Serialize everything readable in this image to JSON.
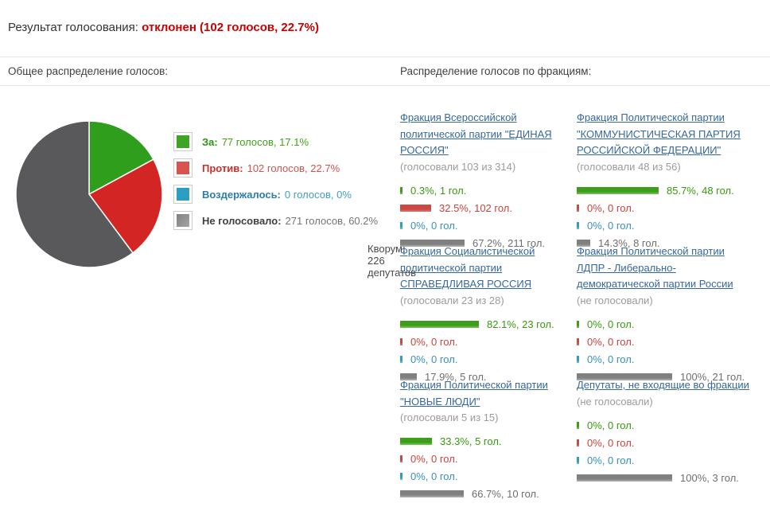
{
  "header": {
    "label": "Результат голосования:",
    "result": "отклонен (102 голосов, 22.7%)"
  },
  "left_section": {
    "title": "Общее распределение голосов:",
    "quorum": "Кворум: 226 депутатов"
  },
  "right_section": {
    "title": "Распределение голосов по фракциям:"
  },
  "colors": {
    "for": "#3ea426",
    "against": "#d9534f",
    "abstain": "#2e9dc4",
    "not_voting": "#808080",
    "result_red": "#cc0000",
    "link_blue": "#35689c"
  },
  "chart_data": {
    "type": "pie",
    "title": "Общее распределение голосов",
    "slices": [
      {
        "label": "За",
        "votes": 77,
        "pct": 17.1,
        "color": "#2f9e1d"
      },
      {
        "label": "Против",
        "votes": 102,
        "pct": 22.7,
        "color": "#d32624"
      },
      {
        "label": "Воздержалось",
        "votes": 0,
        "pct": 0,
        "color": "#2f9ec5"
      },
      {
        "label": "Не голосовало",
        "votes": 271,
        "pct": 60.2,
        "color": "#59595b"
      }
    ],
    "quorum": 226
  },
  "legend": [
    {
      "label": "За:",
      "value": "77 голосов, 17.1%"
    },
    {
      "label": "Против:",
      "value": "102 голосов, 22.7%"
    },
    {
      "label": "Воздержалось:",
      "value": "0 голосов, 0%"
    },
    {
      "label": "Не голосовало:",
      "value": "271 голосов, 60.2%"
    }
  ],
  "factions": [
    {
      "name": "Фракция Всероссийской политической партии \"ЕДИНАЯ РОССИЯ\"",
      "sub": "(голосовали 103 из 314)",
      "bars": [
        {
          "pct": 0.3,
          "votes": 1,
          "text": "0.3%, 1 гол."
        },
        {
          "pct": 32.5,
          "votes": 102,
          "text": "32.5%, 102 гол."
        },
        {
          "pct": 0,
          "votes": 0,
          "text": "0%, 0 гол."
        },
        {
          "pct": 67.2,
          "votes": 211,
          "text": "67.2%, 211 гол."
        }
      ]
    },
    {
      "name": "Фракция Политической партии \"КОММУНИСТИЧЕСКАЯ ПАРТИЯ РОССИЙСКОЙ ФЕДЕРАЦИИ\"",
      "sub": "(голосовали 48 из 56)",
      "bars": [
        {
          "pct": 85.7,
          "votes": 48,
          "text": "85.7%, 48 гол."
        },
        {
          "pct": 0,
          "votes": 0,
          "text": "0%, 0 гол."
        },
        {
          "pct": 0,
          "votes": 0,
          "text": "0%, 0 гол."
        },
        {
          "pct": 14.3,
          "votes": 8,
          "text": "14.3%, 8 гол."
        }
      ]
    },
    {
      "name": "Фракция Социалистической политической партии СПРАВЕДЛИВАЯ РОССИЯ",
      "sub": "(голосовали 23 из 28)",
      "bars": [
        {
          "pct": 82.1,
          "votes": 23,
          "text": "82.1%, 23 гол."
        },
        {
          "pct": 0,
          "votes": 0,
          "text": "0%, 0 гол."
        },
        {
          "pct": 0,
          "votes": 0,
          "text": "0%, 0 гол."
        },
        {
          "pct": 17.9,
          "votes": 5,
          "text": "17.9%, 5 гол."
        }
      ]
    },
    {
      "name": "Фракция Политической партии ЛДПР - Либерально-демократической партии России",
      "sub": "(не голосовали)",
      "bars": [
        {
          "pct": 0,
          "votes": 0,
          "text": "0%, 0 гол."
        },
        {
          "pct": 0,
          "votes": 0,
          "text": "0%, 0 гол."
        },
        {
          "pct": 0,
          "votes": 0,
          "text": "0%, 0 гол."
        },
        {
          "pct": 100,
          "votes": 21,
          "text": "100%, 21 гол."
        }
      ]
    },
    {
      "name": "Фракция Политической партии \"НОВЫЕ ЛЮДИ\"",
      "sub": "(голосовали 5 из 15)",
      "bars": [
        {
          "pct": 33.3,
          "votes": 5,
          "text": "33.3%, 5 гол."
        },
        {
          "pct": 0,
          "votes": 0,
          "text": "0%, 0 гол."
        },
        {
          "pct": 0,
          "votes": 0,
          "text": "0%, 0 гол."
        },
        {
          "pct": 66.7,
          "votes": 10,
          "text": "66.7%, 10 гол."
        }
      ]
    },
    {
      "name": "Депутаты, не входящие во фракции",
      "sub": "(не голосовали)",
      "bars": [
        {
          "pct": 0,
          "votes": 0,
          "text": "0%, 0 гол."
        },
        {
          "pct": 0,
          "votes": 0,
          "text": "0%, 0 гол."
        },
        {
          "pct": 0,
          "votes": 0,
          "text": "0%, 0 гол."
        },
        {
          "pct": 100,
          "votes": 3,
          "text": "100%, 3 гол."
        }
      ]
    }
  ]
}
